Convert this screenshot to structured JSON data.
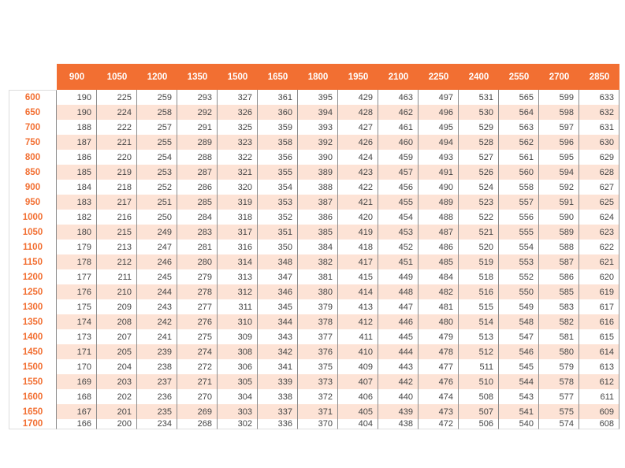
{
  "table": {
    "columns": [
      "900",
      "1050",
      "1200",
      "1350",
      "1500",
      "1650",
      "1800",
      "1950",
      "2100",
      "2250",
      "2400",
      "2550",
      "2700",
      "2850"
    ],
    "rows": [
      {
        "label": "600",
        "values": [
          "190",
          "225",
          "259",
          "293",
          "327",
          "361",
          "395",
          "429",
          "463",
          "497",
          "531",
          "565",
          "599",
          "633"
        ]
      },
      {
        "label": "650",
        "values": [
          "190",
          "224",
          "258",
          "292",
          "326",
          "360",
          "394",
          "428",
          "462",
          "496",
          "530",
          "564",
          "598",
          "632"
        ]
      },
      {
        "label": "700",
        "values": [
          "188",
          "222",
          "257",
          "291",
          "325",
          "359",
          "393",
          "427",
          "461",
          "495",
          "529",
          "563",
          "597",
          "631"
        ]
      },
      {
        "label": "750",
        "values": [
          "187",
          "221",
          "255",
          "289",
          "323",
          "358",
          "392",
          "426",
          "460",
          "494",
          "528",
          "562",
          "596",
          "630"
        ]
      },
      {
        "label": "800",
        "values": [
          "186",
          "220",
          "254",
          "288",
          "322",
          "356",
          "390",
          "424",
          "459",
          "493",
          "527",
          "561",
          "595",
          "629"
        ]
      },
      {
        "label": "850",
        "values": [
          "185",
          "219",
          "253",
          "287",
          "321",
          "355",
          "389",
          "423",
          "457",
          "491",
          "526",
          "560",
          "594",
          "628"
        ]
      },
      {
        "label": "900",
        "values": [
          "184",
          "218",
          "252",
          "286",
          "320",
          "354",
          "388",
          "422",
          "456",
          "490",
          "524",
          "558",
          "592",
          "627"
        ]
      },
      {
        "label": "950",
        "values": [
          "183",
          "217",
          "251",
          "285",
          "319",
          "353",
          "387",
          "421",
          "455",
          "489",
          "523",
          "557",
          "591",
          "625"
        ]
      },
      {
        "label": "1000",
        "values": [
          "182",
          "216",
          "250",
          "284",
          "318",
          "352",
          "386",
          "420",
          "454",
          "488",
          "522",
          "556",
          "590",
          "624"
        ]
      },
      {
        "label": "1050",
        "values": [
          "180",
          "215",
          "249",
          "283",
          "317",
          "351",
          "385",
          "419",
          "453",
          "487",
          "521",
          "555",
          "589",
          "623"
        ]
      },
      {
        "label": "1100",
        "values": [
          "179",
          "213",
          "247",
          "281",
          "316",
          "350",
          "384",
          "418",
          "452",
          "486",
          "520",
          "554",
          "588",
          "622"
        ]
      },
      {
        "label": "1150",
        "values": [
          "178",
          "212",
          "246",
          "280",
          "314",
          "348",
          "382",
          "417",
          "451",
          "485",
          "519",
          "553",
          "587",
          "621"
        ]
      },
      {
        "label": "1200",
        "values": [
          "177",
          "211",
          "245",
          "279",
          "313",
          "347",
          "381",
          "415",
          "449",
          "484",
          "518",
          "552",
          "586",
          "620"
        ]
      },
      {
        "label": "1250",
        "values": [
          "176",
          "210",
          "244",
          "278",
          "312",
          "346",
          "380",
          "414",
          "448",
          "482",
          "516",
          "550",
          "585",
          "619"
        ]
      },
      {
        "label": "1300",
        "values": [
          "175",
          "209",
          "243",
          "277",
          "311",
          "345",
          "379",
          "413",
          "447",
          "481",
          "515",
          "549",
          "583",
          "617"
        ]
      },
      {
        "label": "1350",
        "values": [
          "174",
          "208",
          "242",
          "276",
          "310",
          "344",
          "378",
          "412",
          "446",
          "480",
          "514",
          "548",
          "582",
          "616"
        ]
      },
      {
        "label": "1400",
        "values": [
          "173",
          "207",
          "241",
          "275",
          "309",
          "343",
          "377",
          "411",
          "445",
          "479",
          "513",
          "547",
          "581",
          "615"
        ]
      },
      {
        "label": "1450",
        "values": [
          "171",
          "205",
          "239",
          "274",
          "308",
          "342",
          "376",
          "410",
          "444",
          "478",
          "512",
          "546",
          "580",
          "614"
        ]
      },
      {
        "label": "1500",
        "values": [
          "170",
          "204",
          "238",
          "272",
          "306",
          "341",
          "375",
          "409",
          "443",
          "477",
          "511",
          "545",
          "579",
          "613"
        ]
      },
      {
        "label": "1550",
        "values": [
          "169",
          "203",
          "237",
          "271",
          "305",
          "339",
          "373",
          "407",
          "442",
          "476",
          "510",
          "544",
          "578",
          "612"
        ]
      },
      {
        "label": "1600",
        "values": [
          "168",
          "202",
          "236",
          "270",
          "304",
          "338",
          "372",
          "406",
          "440",
          "474",
          "508",
          "543",
          "577",
          "611"
        ]
      },
      {
        "label": "1650",
        "values": [
          "167",
          "201",
          "235",
          "269",
          "303",
          "337",
          "371",
          "405",
          "439",
          "473",
          "507",
          "541",
          "575",
          "609"
        ]
      },
      {
        "label": "1700",
        "values": [
          "166",
          "200",
          "234",
          "268",
          "302",
          "336",
          "370",
          "404",
          "438",
          "472",
          "506",
          "540",
          "574",
          "608"
        ]
      }
    ],
    "colors": {
      "header_bg": "#f26f32",
      "header_text": "#ffffff",
      "row_label_text": "#f26f32",
      "stripe_bg": "#fde3d6",
      "cell_text": "#444444"
    }
  }
}
